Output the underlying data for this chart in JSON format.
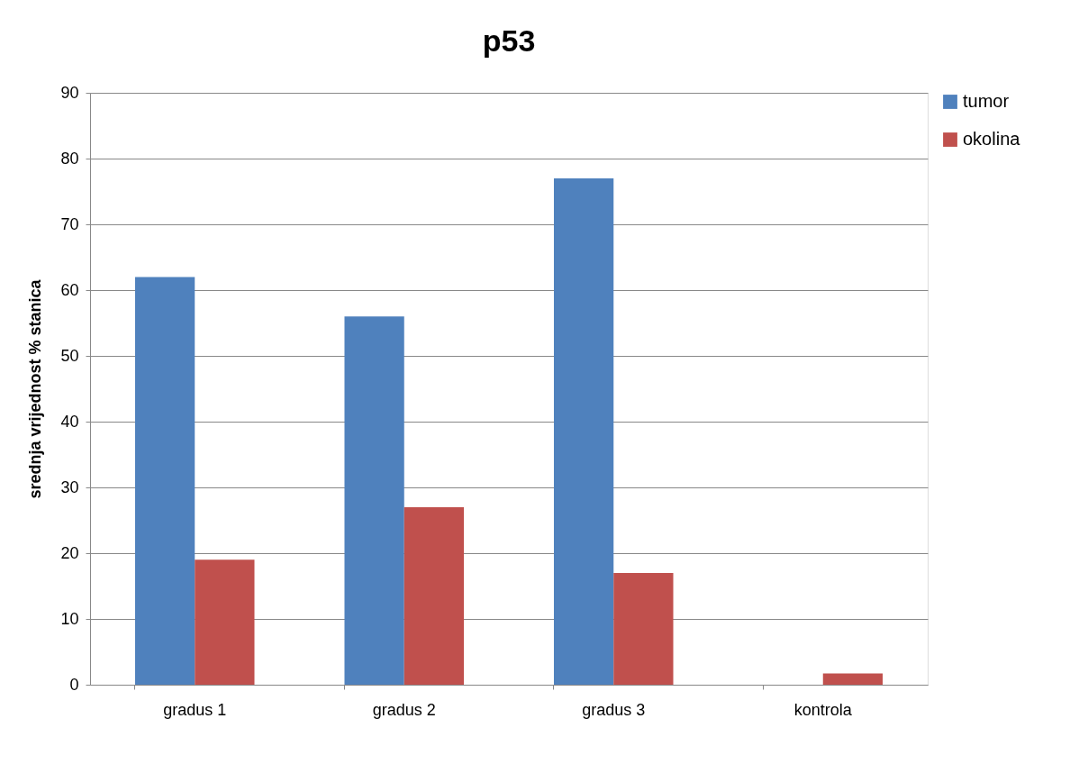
{
  "chart_data": {
    "type": "bar",
    "title": "p53",
    "ylabel": "srednja vrijednost % stanica",
    "categories": [
      "gradus 1",
      "gradus 2",
      "gradus 3",
      "kontrola"
    ],
    "series": [
      {
        "name": "tumor",
        "color": "#4f81bd",
        "values": [
          62,
          56,
          77,
          null
        ]
      },
      {
        "name": "okolina",
        "color": "#c0504d",
        "values": [
          19,
          27,
          17,
          1.7
        ]
      }
    ],
    "ylim": [
      0,
      90
    ],
    "yticks": [
      0,
      10,
      20,
      30,
      40,
      50,
      60,
      70,
      80,
      90
    ],
    "grid": "y",
    "legend": "right"
  }
}
